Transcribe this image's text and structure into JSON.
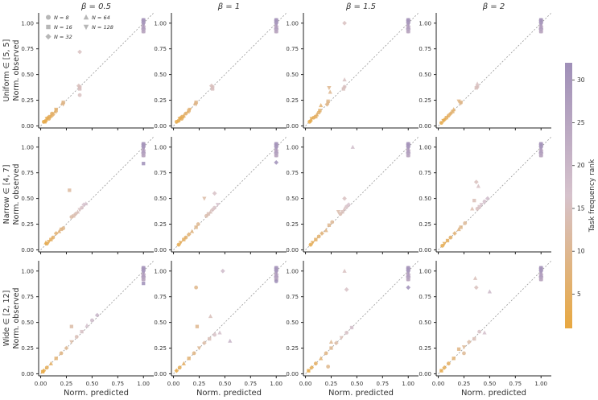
{
  "figure": {
    "column_titles": [
      "β = 0.5",
      "β = 1",
      "β = 1.5",
      "β = 2"
    ],
    "row_labels": [
      "Uniform ∈ [5, 5]",
      "Narrow ∈ [4, 7]",
      "Wide ∈ [2, 12]"
    ],
    "ylabel": "Norm. observed",
    "xlabel": "Norm. predicted",
    "x_ticks": [
      "0.00",
      "0.25",
      "0.50",
      "0.75",
      "1.00"
    ],
    "y_ticks": [
      "0.00",
      "0.25",
      "0.50",
      "0.75",
      "1.00"
    ],
    "colorbar": {
      "label": "Task frequency rank",
      "ticks": [
        5,
        10,
        15,
        20,
        25,
        30
      ],
      "range": [
        1,
        32
      ],
      "color_low": "#e8a840",
      "color_mid": "#d6c2cc",
      "color_high": "#9f8fb8"
    },
    "legend": {
      "entries": [
        {
          "label": "N = 8",
          "marker": "circle"
        },
        {
          "label": "N = 16",
          "marker": "square"
        },
        {
          "label": "N = 32",
          "marker": "diamond"
        },
        {
          "label": "N = 64",
          "marker": "triangle-up"
        },
        {
          "label": "N = 128",
          "marker": "triangle-down"
        }
      ]
    }
  },
  "chart_data": {
    "type": "scatter",
    "xlim": [
      -0.02,
      1.1
    ],
    "ylim": [
      -0.02,
      1.1
    ],
    "reference_line": "y = x (dotted)",
    "grid": false,
    "legend_position": "top-left of first panel",
    "panels": [
      {
        "row": 0,
        "col": 0,
        "points": [
          [
            0.38,
            0.72,
            "diamond"
          ],
          [
            0.38,
            0.3,
            "circle"
          ],
          [
            0.38,
            0.38,
            "circle"
          ],
          [
            0.38,
            0.36,
            "square"
          ],
          [
            0.37,
            0.39,
            "diamond"
          ],
          [
            0.38,
            0.37,
            "triangle-up"
          ],
          [
            0.22,
            0.23,
            "square"
          ],
          [
            0.22,
            0.21,
            "triangle-down"
          ],
          [
            0.21,
            0.22,
            "triangle-up"
          ],
          [
            0.15,
            0.15,
            "square"
          ],
          [
            0.14,
            0.14,
            "triangle-up"
          ],
          [
            0.15,
            0.16,
            "triangle-down"
          ],
          [
            0.08,
            0.07,
            "circle"
          ],
          [
            0.09,
            0.09,
            "square"
          ],
          [
            0.07,
            0.08,
            "diamond"
          ],
          [
            0.1,
            0.1,
            "triangle-up"
          ],
          [
            0.05,
            0.05,
            "circle"
          ],
          [
            0.06,
            0.07,
            "triangle-down"
          ],
          [
            0.03,
            0.04,
            "circle"
          ],
          [
            0.04,
            0.04,
            "square"
          ],
          [
            0.11,
            0.12,
            "circle"
          ],
          [
            0.12,
            0.11,
            "diamond"
          ]
        ]
      },
      {
        "row": 0,
        "col": 1,
        "points": [
          [
            0.38,
            0.38,
            "circle"
          ],
          [
            0.38,
            0.36,
            "square"
          ],
          [
            0.37,
            0.39,
            "diamond"
          ],
          [
            0.38,
            0.37,
            "triangle-up"
          ],
          [
            0.22,
            0.23,
            "square"
          ],
          [
            0.22,
            0.21,
            "triangle-down"
          ],
          [
            0.21,
            0.22,
            "triangle-up"
          ],
          [
            0.15,
            0.15,
            "square"
          ],
          [
            0.14,
            0.14,
            "triangle-up"
          ],
          [
            0.16,
            0.16,
            "triangle-down"
          ],
          [
            0.08,
            0.07,
            "circle"
          ],
          [
            0.09,
            0.09,
            "square"
          ],
          [
            0.07,
            0.08,
            "diamond"
          ],
          [
            0.1,
            0.1,
            "triangle-up"
          ],
          [
            0.05,
            0.05,
            "circle"
          ],
          [
            0.06,
            0.07,
            "triangle-down"
          ],
          [
            0.03,
            0.04,
            "circle"
          ],
          [
            0.12,
            0.12,
            "circle"
          ]
        ]
      },
      {
        "row": 0,
        "col": 2,
        "points": [
          [
            0.38,
            1.0,
            "diamond"
          ],
          [
            0.38,
            0.45,
            "triangle-up"
          ],
          [
            0.38,
            0.38,
            "circle"
          ],
          [
            0.37,
            0.36,
            "square"
          ],
          [
            0.23,
            0.37,
            "triangle-down"
          ],
          [
            0.24,
            0.33,
            "triangle-up"
          ],
          [
            0.22,
            0.24,
            "square"
          ],
          [
            0.21,
            0.21,
            "diamond"
          ],
          [
            0.22,
            0.22,
            "triangle-down"
          ],
          [
            0.14,
            0.15,
            "square"
          ],
          [
            0.15,
            0.2,
            "triangle-up"
          ],
          [
            0.13,
            0.13,
            "circle"
          ],
          [
            0.08,
            0.08,
            "circle"
          ],
          [
            0.1,
            0.09,
            "square"
          ],
          [
            0.06,
            0.07,
            "triangle-down"
          ],
          [
            0.04,
            0.04,
            "circle"
          ],
          [
            0.05,
            0.05,
            "diamond"
          ],
          [
            0.11,
            0.11,
            "triangle-up"
          ]
        ]
      },
      {
        "row": 0,
        "col": 3,
        "points": [
          [
            0.38,
            0.41,
            "triangle-up"
          ],
          [
            0.38,
            0.38,
            "circle"
          ],
          [
            0.37,
            0.37,
            "square"
          ],
          [
            0.22,
            0.22,
            "triangle-down"
          ],
          [
            0.2,
            0.24,
            "triangle-down"
          ],
          [
            0.22,
            0.23,
            "square"
          ],
          [
            0.15,
            0.16,
            "triangle-up"
          ],
          [
            0.14,
            0.14,
            "square"
          ],
          [
            0.1,
            0.1,
            "circle"
          ],
          [
            0.08,
            0.08,
            "square"
          ],
          [
            0.06,
            0.06,
            "diamond"
          ],
          [
            0.05,
            0.05,
            "triangle-down"
          ],
          [
            0.03,
            0.03,
            "circle"
          ],
          [
            0.12,
            0.12,
            "diamond"
          ]
        ]
      },
      {
        "row": 1,
        "col": 0,
        "points": [
          [
            1.0,
            0.84,
            "square"
          ],
          [
            0.28,
            0.58,
            "square"
          ],
          [
            0.3,
            0.32,
            "circle"
          ],
          [
            0.32,
            0.33,
            "square"
          ],
          [
            0.34,
            0.35,
            "diamond"
          ],
          [
            0.36,
            0.37,
            "triangle-up"
          ],
          [
            0.38,
            0.39,
            "triangle-down"
          ],
          [
            0.4,
            0.41,
            "circle"
          ],
          [
            0.42,
            0.44,
            "diamond"
          ],
          [
            0.44,
            0.45,
            "triangle-up"
          ],
          [
            0.22,
            0.21,
            "circle"
          ],
          [
            0.2,
            0.2,
            "square"
          ],
          [
            0.18,
            0.18,
            "triangle-up"
          ],
          [
            0.15,
            0.16,
            "diamond"
          ],
          [
            0.12,
            0.12,
            "circle"
          ],
          [
            0.1,
            0.1,
            "square"
          ],
          [
            0.08,
            0.08,
            "triangle-down"
          ],
          [
            0.06,
            0.06,
            "circle"
          ],
          [
            0.05,
            0.07,
            "triangle-up"
          ]
        ]
      },
      {
        "row": 1,
        "col": 1,
        "points": [
          [
            1.0,
            0.85,
            "diamond"
          ],
          [
            0.4,
            0.55,
            "diamond"
          ],
          [
            0.3,
            0.5,
            "triangle-down"
          ],
          [
            0.32,
            0.33,
            "circle"
          ],
          [
            0.34,
            0.35,
            "square"
          ],
          [
            0.36,
            0.37,
            "triangle-up"
          ],
          [
            0.38,
            0.39,
            "diamond"
          ],
          [
            0.4,
            0.41,
            "circle"
          ],
          [
            0.43,
            0.44,
            "triangle-down"
          ],
          [
            0.24,
            0.25,
            "circle"
          ],
          [
            0.22,
            0.22,
            "square"
          ],
          [
            0.18,
            0.18,
            "triangle-up"
          ],
          [
            0.15,
            0.15,
            "diamond"
          ],
          [
            0.12,
            0.12,
            "circle"
          ],
          [
            0.1,
            0.1,
            "square"
          ],
          [
            0.07,
            0.07,
            "triangle-down"
          ],
          [
            0.05,
            0.05,
            "circle"
          ]
        ]
      },
      {
        "row": 1,
        "col": 2,
        "points": [
          [
            0.46,
            1.0,
            "triangle-up"
          ],
          [
            0.38,
            0.5,
            "diamond"
          ],
          [
            0.32,
            0.37,
            "triangle-down"
          ],
          [
            0.34,
            0.35,
            "circle"
          ],
          [
            0.36,
            0.37,
            "square"
          ],
          [
            0.38,
            0.4,
            "triangle-up"
          ],
          [
            0.4,
            0.42,
            "circle"
          ],
          [
            0.42,
            0.44,
            "diamond"
          ],
          [
            0.26,
            0.27,
            "circle"
          ],
          [
            0.23,
            0.24,
            "square"
          ],
          [
            0.2,
            0.19,
            "triangle-up"
          ],
          [
            0.16,
            0.16,
            "diamond"
          ],
          [
            0.13,
            0.13,
            "circle"
          ],
          [
            0.1,
            0.1,
            "square"
          ],
          [
            0.07,
            0.07,
            "triangle-down"
          ],
          [
            0.05,
            0.05,
            "circle"
          ]
        ]
      },
      {
        "row": 1,
        "col": 3,
        "points": [
          [
            0.37,
            0.66,
            "diamond"
          ],
          [
            0.39,
            0.62,
            "triangle-up"
          ],
          [
            0.35,
            0.48,
            "square"
          ],
          [
            0.33,
            0.4,
            "triangle-up"
          ],
          [
            0.38,
            0.4,
            "circle"
          ],
          [
            0.4,
            0.42,
            "square"
          ],
          [
            0.42,
            0.44,
            "triangle-down"
          ],
          [
            0.45,
            0.47,
            "circle"
          ],
          [
            0.48,
            0.5,
            "diamond"
          ],
          [
            0.26,
            0.26,
            "circle"
          ],
          [
            0.22,
            0.22,
            "square"
          ],
          [
            0.2,
            0.2,
            "triangle-up"
          ],
          [
            0.16,
            0.16,
            "diamond"
          ],
          [
            0.12,
            0.12,
            "circle"
          ],
          [
            0.09,
            0.09,
            "square"
          ],
          [
            0.06,
            0.06,
            "triangle-down"
          ],
          [
            0.04,
            0.04,
            "circle"
          ]
        ]
      },
      {
        "row": 2,
        "col": 0,
        "points": [
          [
            1.0,
            0.88,
            "square"
          ],
          [
            0.3,
            0.46,
            "square"
          ],
          [
            0.5,
            0.52,
            "circle"
          ],
          [
            0.55,
            0.57,
            "diamond"
          ],
          [
            0.45,
            0.47,
            "triangle-up"
          ],
          [
            0.4,
            0.41,
            "square"
          ],
          [
            0.35,
            0.36,
            "circle"
          ],
          [
            0.3,
            0.31,
            "triangle-down"
          ],
          [
            0.25,
            0.25,
            "diamond"
          ],
          [
            0.2,
            0.2,
            "circle"
          ],
          [
            0.15,
            0.15,
            "square"
          ],
          [
            0.1,
            0.1,
            "triangle-up"
          ],
          [
            0.06,
            0.06,
            "circle"
          ],
          [
            0.03,
            0.03,
            "diamond"
          ],
          [
            0.02,
            0.02,
            "square"
          ]
        ]
      },
      {
        "row": 2,
        "col": 1,
        "points": [
          [
            0.22,
            0.84,
            "circle"
          ],
          [
            0.23,
            0.46,
            "square"
          ],
          [
            0.48,
            1.0,
            "diamond"
          ],
          [
            0.36,
            0.56,
            "triangle-up"
          ],
          [
            0.45,
            0.4,
            "triangle-up"
          ],
          [
            0.55,
            0.32,
            "triangle-up"
          ],
          [
            0.4,
            0.38,
            "circle"
          ],
          [
            0.35,
            0.34,
            "square"
          ],
          [
            0.3,
            0.3,
            "diamond"
          ],
          [
            0.25,
            0.25,
            "triangle-down"
          ],
          [
            0.2,
            0.2,
            "circle"
          ],
          [
            0.15,
            0.15,
            "square"
          ],
          [
            0.1,
            0.1,
            "triangle-up"
          ],
          [
            0.06,
            0.06,
            "circle"
          ],
          [
            0.03,
            0.03,
            "diamond"
          ],
          [
            1.0,
            0.9,
            "circle"
          ]
        ]
      },
      {
        "row": 2,
        "col": 2,
        "points": [
          [
            0.38,
            1.0,
            "triangle-up"
          ],
          [
            0.4,
            0.82,
            "diamond"
          ],
          [
            1.0,
            0.84,
            "diamond"
          ],
          [
            0.25,
            0.31,
            "triangle-up"
          ],
          [
            0.2,
            0.2,
            "circle"
          ],
          [
            0.25,
            0.25,
            "square"
          ],
          [
            0.3,
            0.3,
            "diamond"
          ],
          [
            0.35,
            0.35,
            "triangle-down"
          ],
          [
            0.4,
            0.4,
            "circle"
          ],
          [
            0.45,
            0.45,
            "square"
          ],
          [
            0.15,
            0.15,
            "triangle-up"
          ],
          [
            0.1,
            0.1,
            "circle"
          ],
          [
            0.06,
            0.06,
            "diamond"
          ],
          [
            0.03,
            0.03,
            "square"
          ],
          [
            0.22,
            0.07,
            "circle"
          ]
        ]
      },
      {
        "row": 2,
        "col": 3,
        "points": [
          [
            0.37,
            0.84,
            "diamond"
          ],
          [
            0.36,
            0.93,
            "triangle-up"
          ],
          [
            0.5,
            0.8,
            "triangle-up"
          ],
          [
            0.2,
            0.24,
            "square"
          ],
          [
            0.25,
            0.2,
            "circle"
          ],
          [
            0.45,
            0.4,
            "triangle-up"
          ],
          [
            0.4,
            0.41,
            "circle"
          ],
          [
            0.3,
            0.31,
            "diamond"
          ],
          [
            0.25,
            0.26,
            "triangle-down"
          ],
          [
            0.15,
            0.15,
            "square"
          ],
          [
            0.1,
            0.1,
            "circle"
          ],
          [
            0.06,
            0.06,
            "diamond"
          ],
          [
            0.03,
            0.03,
            "square"
          ],
          [
            0.35,
            0.34,
            "square"
          ]
        ]
      }
    ]
  }
}
